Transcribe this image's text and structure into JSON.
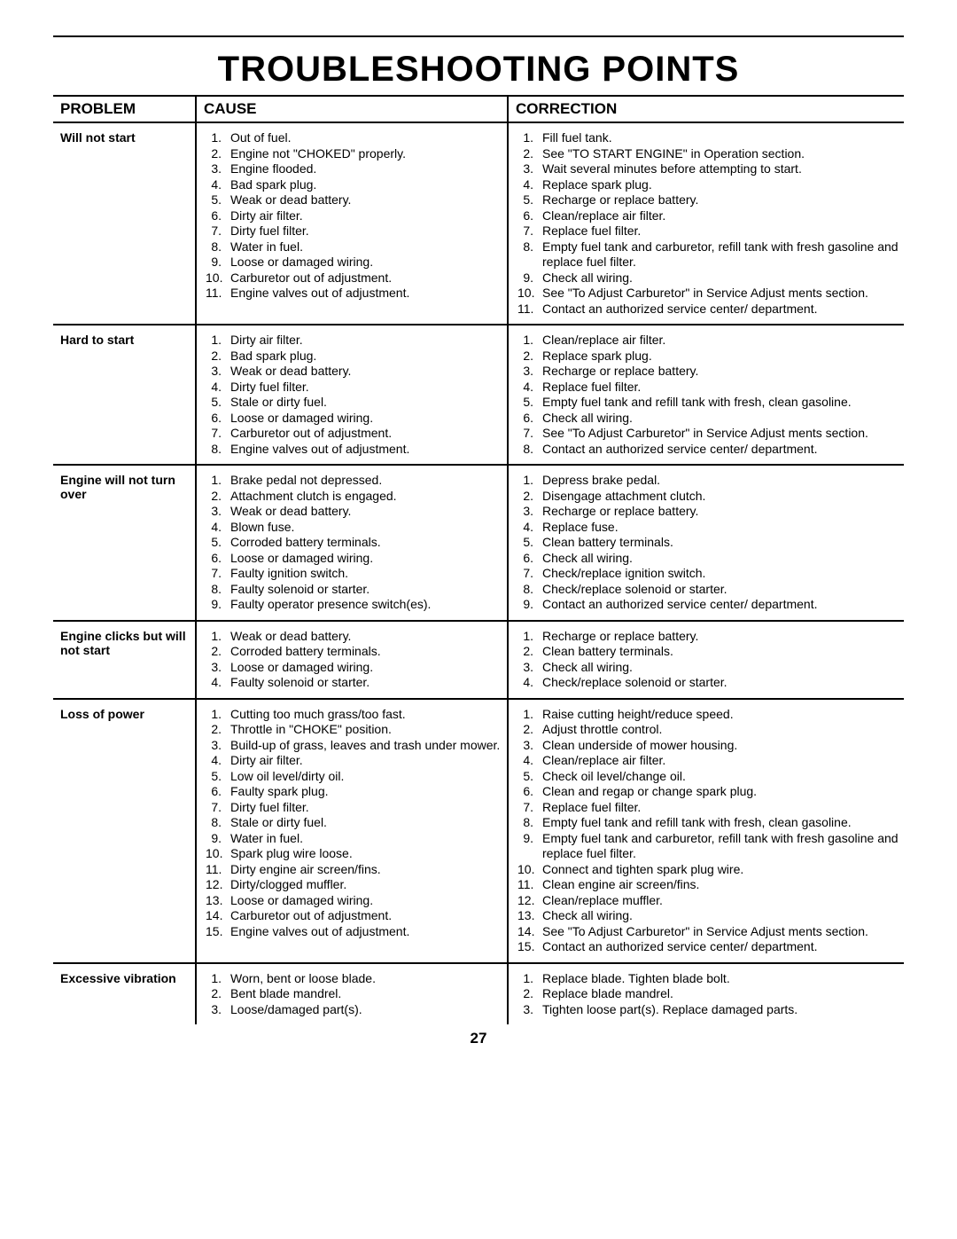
{
  "title": "TROUBLESHOOTING POINTS",
  "headers": {
    "problem": "PROBLEM",
    "cause": "CAUSE",
    "correction": "CORRECTION"
  },
  "page_number": "27",
  "sections": [
    {
      "problem": "Will not start",
      "causes": [
        "Out of fuel.",
        "Engine not \"CHOKED\" properly.",
        "Engine flooded.",
        "Bad spark plug.",
        "Weak or dead battery.",
        "Dirty air filter.",
        "Dirty fuel filter.",
        "Water in fuel.",
        "Loose or damaged wiring.",
        "Carburetor out of adjustment.",
        "Engine valves out of adjustment."
      ],
      "corrections": [
        "Fill fuel tank.",
        "See \"TO START ENGINE\" in Operation section.",
        "Wait several minutes before attempting to start.",
        "Replace spark plug.",
        "Recharge or replace battery.",
        "Clean/replace air filter.",
        "Replace fuel filter.",
        "Empty fuel tank and carburetor, refill tank with fresh gasoline and replace fuel filter.",
        "Check all wiring.",
        "See \"To Adjust Carburetor\" in Service Adjust ments section.",
        "Contact an authorized service center/ department."
      ]
    },
    {
      "problem": "Hard to start",
      "causes": [
        "Dirty air filter.",
        "Bad spark plug.",
        "Weak or dead battery.",
        "Dirty fuel filter.",
        "Stale or dirty fuel.",
        "Loose or damaged wiring.",
        "Carburetor out of adjustment.",
        "Engine valves out of adjustment."
      ],
      "corrections": [
        "Clean/replace air filter.",
        "Replace spark plug.",
        "Recharge or replace battery.",
        "Replace fuel filter.",
        "Empty fuel tank and refill tank with fresh, clean gasoline.",
        "Check all wiring.",
        "See \"To Adjust Carburetor\" in Service Adjust ments section.",
        "Contact an authorized service center/ department."
      ]
    },
    {
      "problem": "Engine will not turn over",
      "causes": [
        "Brake pedal not depressed.",
        "Attachment clutch is engaged.",
        "Weak or dead battery.",
        "Blown fuse.",
        "Corroded battery terminals.",
        "Loose or damaged wiring.",
        "Faulty ignition switch.",
        "Faulty solenoid or starter.",
        "Faulty operator presence switch(es)."
      ],
      "corrections": [
        "Depress brake pedal.",
        "Disengage attachment clutch.",
        "Recharge or replace battery.",
        "Replace fuse.",
        "Clean battery terminals.",
        "Check all wiring.",
        "Check/replace ignition switch.",
        "Check/replace solenoid or starter.",
        "Contact an authorized service center/ department."
      ]
    },
    {
      "problem": "Engine clicks but will not start",
      "causes": [
        "Weak or dead battery.",
        "Corroded battery terminals.",
        "Loose or damaged wiring.",
        "Faulty solenoid or starter."
      ],
      "corrections": [
        "Recharge or replace battery.",
        "Clean battery terminals.",
        "Check all wiring.",
        "Check/replace solenoid or starter."
      ]
    },
    {
      "problem": "Loss of power",
      "causes": [
        "Cutting too much grass/too fast.",
        "Throttle in \"CHOKE\" position.",
        "Build-up of grass, leaves and trash under mower.",
        "Dirty air filter.",
        "Low oil level/dirty oil.",
        "Faulty spark plug.",
        "Dirty fuel filter.",
        "Stale or dirty fuel.",
        "Water in fuel.",
        "Spark plug wire loose.",
        "Dirty engine air screen/fins.",
        "Dirty/clogged muffler.",
        "Loose or damaged wiring.",
        "Carburetor out of adjustment.",
        "Engine valves out of adjustment."
      ],
      "corrections": [
        "Raise cutting height/reduce speed.",
        "Adjust throttle control.",
        "Clean underside of mower housing.",
        "Clean/replace air filter.",
        "Check oil level/change oil.",
        "Clean and regap or change spark plug.",
        "Replace fuel filter.",
        "Empty fuel tank and refill tank with fresh, clean gasoline.",
        "Empty fuel tank and carburetor, refill tank with fresh gasoline and replace fuel filter.",
        "Connect and tighten spark plug wire.",
        "Clean engine air screen/fins.",
        "Clean/replace muffler.",
        "Check all wiring.",
        "See \"To Adjust Carburetor\" in Service Adjust ments section.",
        "Contact an authorized service center/ department."
      ]
    },
    {
      "problem": "Excessive vibration",
      "causes": [
        "Worn, bent or loose blade.",
        "Bent blade mandrel.",
        "Loose/damaged part(s)."
      ],
      "corrections": [
        "Replace blade. Tighten blade bolt.",
        "Replace blade mandrel.",
        "Tighten loose part(s).  Replace damaged parts."
      ]
    }
  ]
}
